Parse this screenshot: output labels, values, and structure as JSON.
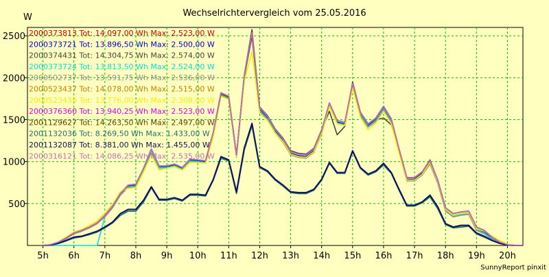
{
  "chart_data": {
    "type": "line",
    "title": "Wechselrichtervergleich vom 25.05.2016",
    "ylabel": "W",
    "xlabel": "",
    "footer": "SunnyReport pinxit",
    "ylim": [
      0,
      2600
    ],
    "xlim": [
      4.5,
      20.5
    ],
    "grid": true,
    "legend_position": "top-left",
    "y_ticks": [
      500,
      1000,
      1500,
      2000,
      2500
    ],
    "x_ticks": [
      {
        "v": 5,
        "label": "5h"
      },
      {
        "v": 6,
        "label": "6h"
      },
      {
        "v": 7,
        "label": "7h"
      },
      {
        "v": 8,
        "label": "8h"
      },
      {
        "v": 9,
        "label": "9h"
      },
      {
        "v": 10,
        "label": "10h"
      },
      {
        "v": 11,
        "label": "11h"
      },
      {
        "v": 12,
        "label": "12h"
      },
      {
        "v": 13,
        "label": "13h"
      },
      {
        "v": 14,
        "label": "14h"
      },
      {
        "v": 15,
        "label": "15h"
      },
      {
        "v": 16,
        "label": "16h"
      },
      {
        "v": 17,
        "label": "17h"
      },
      {
        "v": 18,
        "label": "18h"
      },
      {
        "v": 19,
        "label": "19h"
      },
      {
        "v": 20,
        "label": "20h"
      }
    ],
    "x": [
      5,
      5.25,
      5.5,
      5.75,
      6,
      6.25,
      6.5,
      6.75,
      7,
      7.25,
      7.5,
      7.75,
      8,
      8.25,
      8.5,
      8.75,
      9,
      9.25,
      9.5,
      9.75,
      10,
      10.25,
      10.5,
      10.75,
      11,
      11.25,
      11.5,
      11.75,
      12,
      12.25,
      12.5,
      12.75,
      13,
      13.25,
      13.5,
      13.75,
      14,
      14.25,
      14.5,
      14.75,
      15,
      15.25,
      15.5,
      15.75,
      16,
      16.25,
      16.5,
      16.75,
      17,
      17.25,
      17.5,
      17.75,
      18,
      18.25,
      18.5,
      18.75,
      19,
      19.25,
      19.5,
      19.75,
      20,
      20.25,
      20.5
    ],
    "series": [
      {
        "name": "2000373813 Tot: 14.097,00 Wh Max: 2.523,00 W",
        "color": "#cc0000",
        "values": [
          0,
          10,
          40,
          90,
          150,
          180,
          220,
          270,
          360,
          470,
          620,
          720,
          730,
          920,
          1150,
          950,
          950,
          970,
          930,
          1030,
          1020,
          1010,
          1350,
          1820,
          1780,
          1080,
          2020,
          2540,
          1640,
          1540,
          1380,
          1270,
          1120,
          1090,
          1080,
          1150,
          1370,
          1700,
          1490,
          1470,
          1930,
          1590,
          1450,
          1520,
          1660,
          1510,
          1150,
          810,
          810,
          880,
          1010,
          780,
          450,
          380,
          400,
          410,
          220,
          180,
          100,
          40,
          10,
          0,
          0
        ]
      },
      {
        "name": "2000373721 Tot: 13.896,50 Wh Max: 2.500,00 W",
        "color": "#0000cc",
        "values": [
          0,
          5,
          30,
          80,
          140,
          170,
          210,
          260,
          350,
          460,
          610,
          710,
          720,
          910,
          1140,
          940,
          940,
          960,
          920,
          1020,
          1010,
          1000,
          1340,
          1810,
          1770,
          1070,
          2000,
          2500,
          1620,
          1520,
          1360,
          1250,
          1100,
          1070,
          1060,
          1130,
          1350,
          1680,
          1470,
          1450,
          1910,
          1570,
          1430,
          1500,
          1640,
          1490,
          1130,
          790,
          790,
          860,
          990,
          760,
          430,
          360,
          380,
          390,
          200,
          160,
          80,
          30,
          5,
          0,
          0
        ]
      },
      {
        "name": "2000374431 Tot: 14.304,75 Wh Max: 2.574,00 W",
        "color": "#444444",
        "values": [
          0,
          10,
          40,
          90,
          150,
          180,
          220,
          270,
          360,
          470,
          620,
          720,
          730,
          920,
          1150,
          950,
          950,
          970,
          930,
          1030,
          1020,
          1010,
          1350,
          1820,
          1780,
          1080,
          2030,
          2574,
          1650,
          1550,
          1390,
          1280,
          1130,
          1100,
          1090,
          1160,
          1380,
          1600,
          1320,
          1420,
          1950,
          1590,
          1450,
          1500,
          1520,
          1440,
          1150,
          810,
          810,
          880,
          1020,
          780,
          450,
          380,
          400,
          410,
          220,
          180,
          100,
          40,
          10,
          0,
          0
        ]
      },
      {
        "name": "2000373724 Tot: 13.813,50 Wh Max: 2.524,00 W",
        "color": "#00e0e0",
        "values": [
          0,
          0,
          0,
          0,
          0,
          0,
          0,
          0,
          340,
          450,
          600,
          700,
          710,
          900,
          1130,
          930,
          930,
          950,
          910,
          1010,
          1000,
          990,
          1330,
          1800,
          1760,
          1060,
          1990,
          2524,
          1610,
          1510,
          1350,
          1240,
          1090,
          1060,
          1050,
          1120,
          1340,
          1670,
          1460,
          1440,
          1900,
          1560,
          1420,
          1490,
          1630,
          1480,
          1120,
          780,
          780,
          850,
          980,
          750,
          420,
          350,
          370,
          380,
          190,
          150,
          80,
          30,
          5,
          0,
          0
        ]
      },
      {
        "name": "2000502737 Tot: 13.591,75 Wh Max: 2.536,00 W",
        "color": "#909090",
        "values": [
          0,
          5,
          30,
          80,
          140,
          170,
          210,
          260,
          340,
          450,
          600,
          690,
          700,
          880,
          1100,
          910,
          920,
          940,
          900,
          1000,
          990,
          980,
          1320,
          1790,
          1750,
          1050,
          1980,
          2536,
          1600,
          1500,
          1340,
          1230,
          1080,
          1050,
          1040,
          1110,
          1330,
          1660,
          1450,
          1430,
          1890,
          1550,
          1410,
          1480,
          1620,
          1470,
          1110,
          770,
          770,
          840,
          970,
          740,
          410,
          340,
          360,
          370,
          180,
          140,
          70,
          25,
          5,
          0,
          0
        ]
      },
      {
        "name": "2000523437 Tot: 14.078,00 Wh Max: 2.515,00 W",
        "color": "#c08000",
        "values": [
          0,
          10,
          40,
          90,
          150,
          180,
          220,
          270,
          360,
          470,
          620,
          720,
          730,
          920,
          1150,
          950,
          950,
          970,
          930,
          1030,
          1020,
          1010,
          1350,
          1820,
          1780,
          1080,
          2020,
          2515,
          1640,
          1540,
          1380,
          1270,
          1120,
          1090,
          1080,
          1150,
          1370,
          1700,
          1490,
          1470,
          1930,
          1590,
          1450,
          1520,
          1660,
          1510,
          1150,
          810,
          810,
          880,
          1010,
          780,
          450,
          380,
          400,
          410,
          220,
          180,
          100,
          40,
          10,
          0,
          0
        ]
      },
      {
        "name": "2000523439 Tot: 13.776,00 Wh Max: 2.308,00 W",
        "color": "#f0f000",
        "values": [
          0,
          10,
          40,
          100,
          160,
          190,
          240,
          290,
          390,
          490,
          640,
          680,
          690,
          880,
          1080,
          900,
          920,
          940,
          900,
          990,
          990,
          980,
          1300,
          1780,
          1740,
          1060,
          1960,
          2308,
          1580,
          1490,
          1340,
          1240,
          1090,
          1060,
          1050,
          1120,
          1340,
          1660,
          1450,
          1430,
          1880,
          1530,
          1380,
          1460,
          1600,
          1450,
          1100,
          780,
          780,
          850,
          990,
          760,
          430,
          360,
          380,
          390,
          200,
          170,
          110,
          60,
          15,
          0,
          0
        ]
      },
      {
        "name": "2000376360 Tot: 13.940,25 Wh Max: 2.523,00 W",
        "color": "#e000e0",
        "values": [
          0,
          10,
          40,
          90,
          150,
          180,
          220,
          270,
          360,
          470,
          620,
          720,
          730,
          920,
          1150,
          950,
          950,
          970,
          930,
          1030,
          1020,
          1010,
          1350,
          1820,
          1780,
          1080,
          2020,
          2523,
          1640,
          1540,
          1380,
          1270,
          1120,
          1090,
          1080,
          1150,
          1370,
          1700,
          1490,
          1470,
          1930,
          1590,
          1450,
          1520,
          1660,
          1510,
          1150,
          810,
          810,
          880,
          1010,
          780,
          450,
          380,
          400,
          410,
          220,
          180,
          100,
          40,
          10,
          0,
          0
        ]
      },
      {
        "name": "2001129627 Tot: 14.263,50 Wh Max: 2.497,00 W",
        "color": "#604000",
        "values": [
          0,
          10,
          40,
          90,
          150,
          180,
          220,
          270,
          360,
          470,
          620,
          720,
          730,
          920,
          1150,
          950,
          950,
          970,
          930,
          1030,
          1020,
          1010,
          1350,
          1810,
          1770,
          1080,
          2020,
          2497,
          1640,
          1540,
          1380,
          1270,
          1120,
          1090,
          1080,
          1150,
          1370,
          1700,
          1490,
          1470,
          1930,
          1590,
          1450,
          1520,
          1660,
          1510,
          1150,
          810,
          810,
          880,
          1010,
          780,
          450,
          380,
          400,
          410,
          220,
          180,
          100,
          40,
          10,
          0,
          0
        ]
      },
      {
        "name": "2001132036 Tot: 8.269,50 Wh Max: 1.433,00 W",
        "color": "#207070",
        "values": [
          0,
          5,
          25,
          55,
          90,
          105,
          130,
          160,
          210,
          270,
          360,
          410,
          410,
          520,
          690,
          540,
          540,
          560,
          530,
          600,
          600,
          590,
          780,
          1040,
          1010,
          620,
          1140,
          1433,
          930,
          880,
          780,
          710,
          630,
          620,
          620,
          660,
          780,
          980,
          860,
          860,
          1120,
          920,
          840,
          880,
          960,
          860,
          660,
          470,
          470,
          510,
          580,
          440,
          250,
          210,
          220,
          230,
          140,
          100,
          60,
          25,
          5,
          0,
          0
        ]
      },
      {
        "name": "2001132087 Tot: 8.381,00 Wh Max: 1.455,00 W",
        "color": "#101060",
        "values": [
          0,
          5,
          25,
          60,
          100,
          110,
          140,
          170,
          220,
          280,
          380,
          430,
          430,
          540,
          700,
          550,
          550,
          570,
          540,
          610,
          610,
          600,
          790,
          1060,
          1020,
          640,
          1160,
          1455,
          940,
          890,
          790,
          720,
          640,
          630,
          630,
          670,
          790,
          990,
          870,
          870,
          1130,
          930,
          850,
          890,
          980,
          870,
          670,
          480,
          480,
          520,
          600,
          460,
          260,
          220,
          240,
          240,
          150,
          110,
          60,
          25,
          5,
          0,
          0
        ]
      },
      {
        "name": "2000316121 Tot: 14.086,25 Wh Max: 2.535,00 W",
        "color": "#c070c0",
        "values": [
          0,
          10,
          40,
          90,
          150,
          180,
          220,
          270,
          360,
          470,
          620,
          720,
          730,
          920,
          1150,
          950,
          950,
          970,
          930,
          1030,
          1020,
          1010,
          1350,
          1820,
          1780,
          1080,
          2020,
          2535,
          1640,
          1540,
          1380,
          1270,
          1120,
          1090,
          1080,
          1150,
          1370,
          1700,
          1490,
          1470,
          1930,
          1590,
          1450,
          1520,
          1660,
          1510,
          1150,
          810,
          810,
          880,
          1010,
          780,
          450,
          380,
          400,
          410,
          220,
          180,
          100,
          40,
          10,
          0,
          0
        ]
      }
    ]
  }
}
